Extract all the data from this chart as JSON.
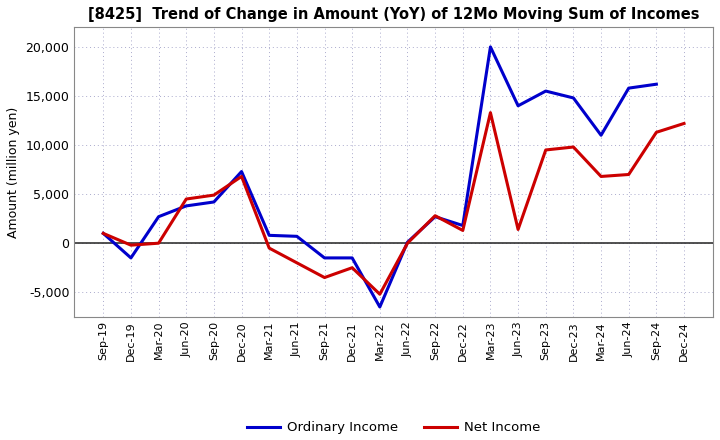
{
  "title": "[8425]  Trend of Change in Amount (YoY) of 12Mo Moving Sum of Incomes",
  "ylabel": "Amount (million yen)",
  "x_labels": [
    "Sep-19",
    "Dec-19",
    "Mar-20",
    "Jun-20",
    "Sep-20",
    "Dec-20",
    "Mar-21",
    "Jun-21",
    "Sep-21",
    "Dec-21",
    "Mar-22",
    "Jun-22",
    "Sep-22",
    "Dec-22",
    "Mar-23",
    "Jun-23",
    "Sep-23",
    "Dec-23",
    "Mar-24",
    "Jun-24",
    "Sep-24",
    "Dec-24"
  ],
  "ordinary_income": [
    1000,
    -1500,
    2700,
    3800,
    4200,
    7300,
    800,
    700,
    -1500,
    -1500,
    -6500,
    100,
    2700,
    1800,
    20000,
    14000,
    15500,
    14800,
    11000,
    15800,
    16200,
    null
  ],
  "net_income": [
    1000,
    -200,
    0,
    4500,
    4900,
    6800,
    -500,
    -2000,
    -3500,
    -2500,
    -5200,
    0,
    2800,
    1300,
    13300,
    1400,
    9500,
    9800,
    6800,
    7000,
    11300,
    12200
  ],
  "ordinary_color": "#0000cc",
  "net_color": "#cc0000",
  "ylim": [
    -7500,
    22000
  ],
  "yticks": [
    -5000,
    0,
    5000,
    10000,
    15000,
    20000
  ],
  "bg_color": "#ffffff",
  "plot_bg_color": "#ffffff",
  "grid_color": "#aaaacc",
  "linewidth": 2.2
}
